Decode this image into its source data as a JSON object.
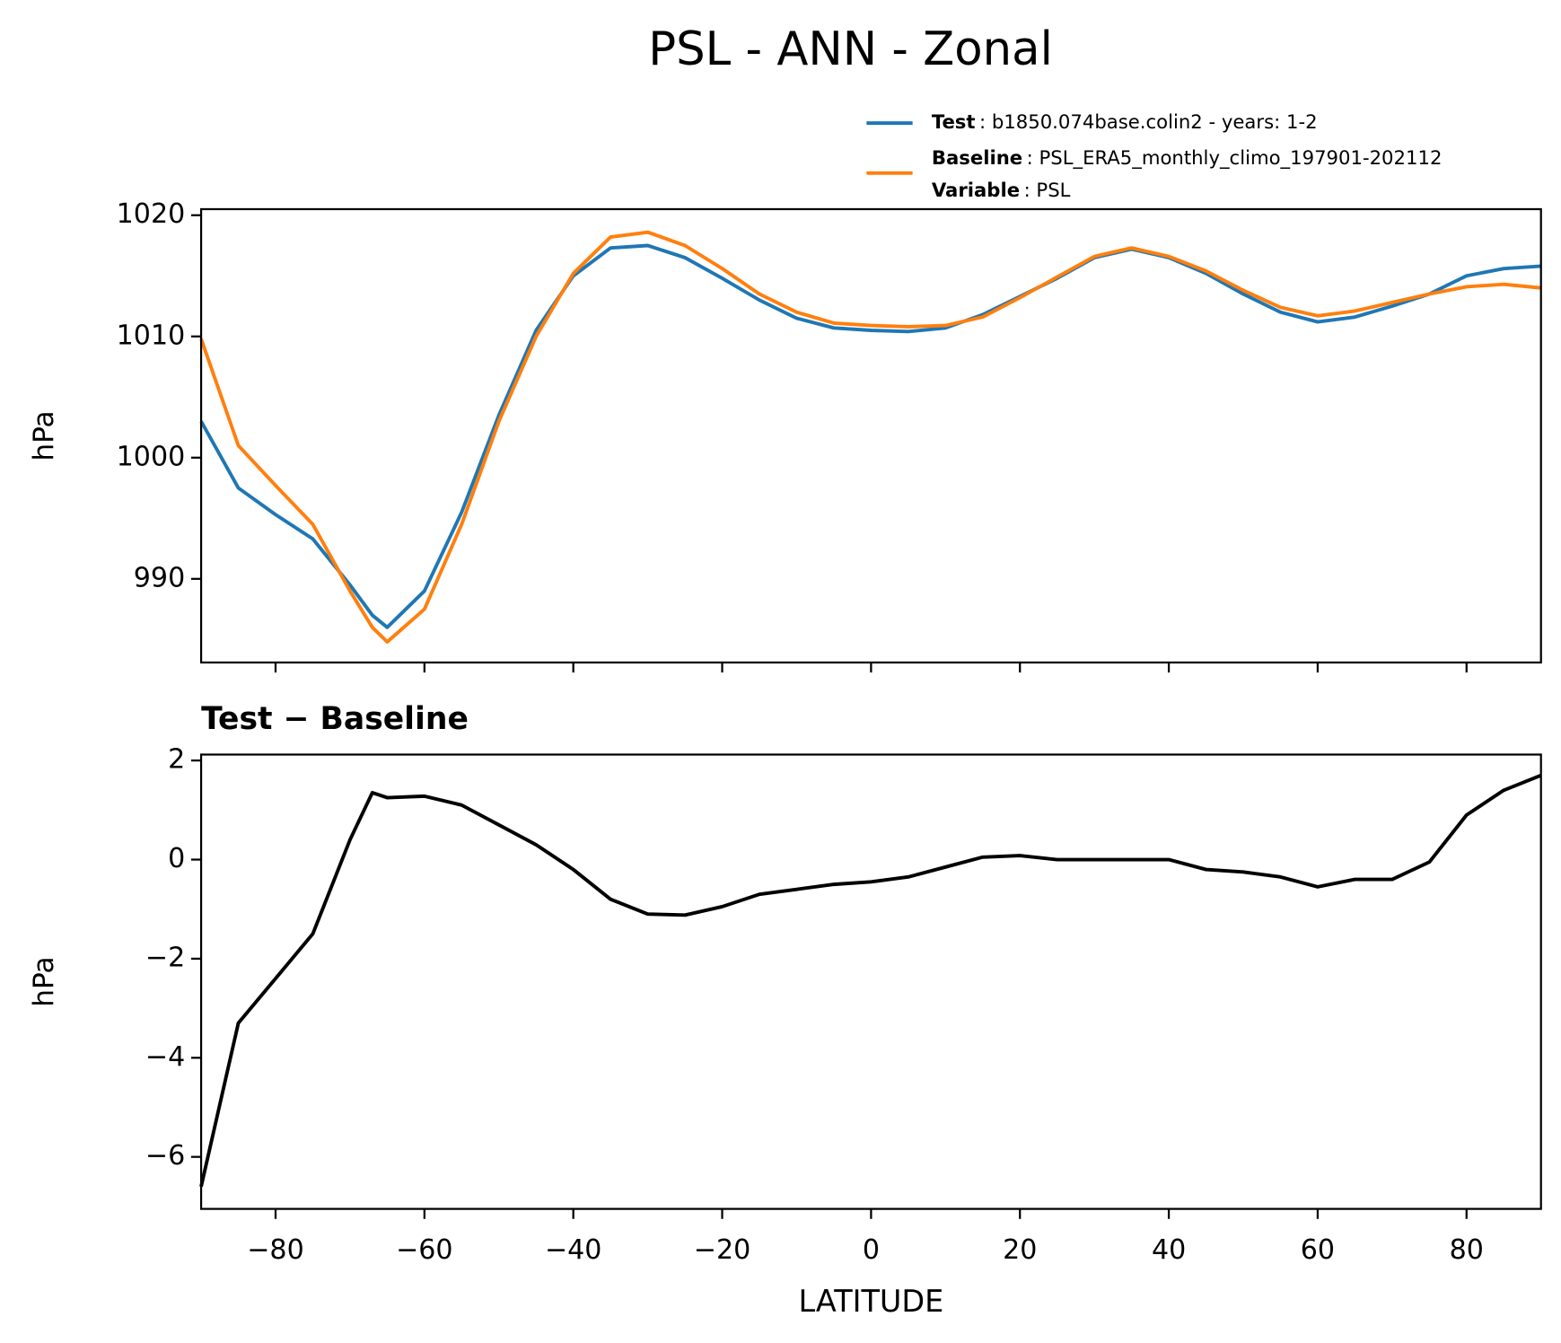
{
  "title": "PSL - ANN - Zonal",
  "chart_data": [
    {
      "type": "line",
      "ylabel": "hPa",
      "x": [
        -90,
        -85,
        -80,
        -75,
        -70,
        -67,
        -65,
        -60,
        -55,
        -50,
        -45,
        -40,
        -35,
        -30,
        -25,
        -20,
        -15,
        -10,
        -5,
        0,
        5,
        10,
        15,
        20,
        25,
        30,
        35,
        40,
        45,
        50,
        55,
        60,
        65,
        70,
        75,
        80,
        85,
        90
      ],
      "series": [
        {
          "name": "Test",
          "label": ": b1850.074base.colin2 - years: 1-2",
          "color": "#1f77b4",
          "values": [
            1003.0,
            997.5,
            995.3,
            993.3,
            989.5,
            987.0,
            986.0,
            989.0,
            995.5,
            1003.5,
            1010.5,
            1015.0,
            1017.3,
            1017.5,
            1016.5,
            1014.8,
            1013.0,
            1011.5,
            1010.7,
            1010.5,
            1010.4,
            1010.7,
            1011.8,
            1013.3,
            1014.8,
            1016.5,
            1017.2,
            1016.5,
            1015.2,
            1013.5,
            1012.0,
            1011.2,
            1011.6,
            1012.5,
            1013.5,
            1015.0,
            1015.6,
            1015.8
          ]
        },
        {
          "name": "Baseline",
          "label": ": PSL_ERA5_monthly_climo_197901-202112",
          "color": "#ff7f0e",
          "values": [
            1009.8,
            1001.0,
            997.7,
            994.5,
            989.0,
            986.0,
            984.8,
            987.5,
            994.5,
            1003.0,
            1010.0,
            1015.2,
            1018.2,
            1018.6,
            1017.5,
            1015.6,
            1013.5,
            1012.0,
            1011.1,
            1010.9,
            1010.8,
            1010.9,
            1011.6,
            1013.2,
            1014.9,
            1016.6,
            1017.3,
            1016.6,
            1015.4,
            1013.8,
            1012.4,
            1011.7,
            1012.1,
            1012.8,
            1013.5,
            1014.1,
            1014.3,
            1014.0
          ]
        }
      ],
      "legend_extra": {
        "name": "Variable",
        "label": ": PSL"
      },
      "xlim": [
        -90,
        90
      ],
      "xticks": [
        -80,
        -60,
        -40,
        -20,
        0,
        20,
        40,
        60,
        80
      ],
      "xticklabels": false,
      "ylim": [
        983.1,
        1020.5
      ],
      "yticks": [
        990,
        1000,
        1010,
        1020
      ]
    },
    {
      "type": "line",
      "title": "Test − Baseline",
      "ylabel": "hPa",
      "xlabel": "LATITUDE",
      "x": [
        -90,
        -85,
        -80,
        -75,
        -70,
        -67,
        -65,
        -60,
        -55,
        -50,
        -45,
        -40,
        -35,
        -30,
        -25,
        -20,
        -15,
        -10,
        -5,
        0,
        5,
        10,
        15,
        20,
        25,
        30,
        35,
        40,
        45,
        50,
        55,
        60,
        65,
        70,
        75,
        80,
        85,
        90
      ],
      "series": [
        {
          "color": "#000000",
          "values": [
            -6.6,
            -3.3,
            -2.4,
            -1.5,
            0.4,
            1.35,
            1.25,
            1.28,
            1.1,
            0.7,
            0.3,
            -0.2,
            -0.8,
            -1.1,
            -1.12,
            -0.95,
            -0.7,
            -0.6,
            -0.5,
            -0.45,
            -0.35,
            -0.15,
            0.05,
            0.08,
            0.0,
            0.0,
            0.0,
            0.0,
            -0.2,
            -0.25,
            -0.35,
            -0.55,
            -0.4,
            -0.4,
            -0.05,
            0.9,
            1.4,
            1.7
          ]
        }
      ],
      "xlim": [
        -90,
        90
      ],
      "xticks": [
        {
          "value": -80,
          "label": "−80"
        },
        {
          "value": -60,
          "label": "−60"
        },
        {
          "value": -40,
          "label": "−40"
        },
        {
          "value": -20,
          "label": "−20"
        },
        0,
        20,
        40,
        60,
        80
      ],
      "xticklabels": true,
      "ylim": [
        -7.05,
        2.12
      ],
      "yticks": [
        {
          "value": -6,
          "label": "−6"
        },
        {
          "value": -4,
          "label": "−4"
        },
        {
          "value": -2,
          "label": "−2"
        },
        0,
        2
      ]
    }
  ]
}
